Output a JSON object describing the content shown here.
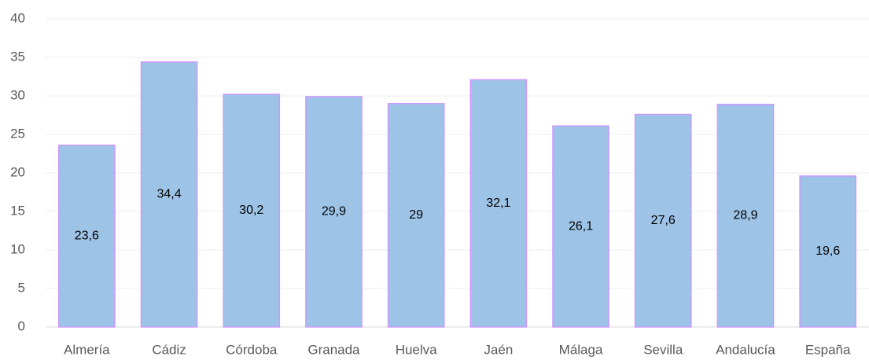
{
  "chart_data": {
    "type": "bar",
    "categories": [
      "Almería",
      "Cádiz",
      "Córdoba",
      "Granada",
      "Huelva",
      "Jaén",
      "Málaga",
      "Sevilla",
      "Andalucía",
      "España"
    ],
    "values": [
      23.6,
      34.4,
      30.2,
      29.9,
      29,
      32.1,
      26.1,
      27.6,
      28.9,
      19.6
    ],
    "value_labels": [
      "23,6",
      "34,4",
      "30,2",
      "29,9",
      "29",
      "32,1",
      "26,1",
      "27,6",
      "28,9",
      "19,6"
    ],
    "color": "#9dc3e6",
    "edge_color": "#cc99ff",
    "ylim": [
      0,
      40
    ],
    "yticks": [
      0,
      5,
      10,
      15,
      20,
      25,
      30,
      35,
      40
    ],
    "grid": true
  }
}
